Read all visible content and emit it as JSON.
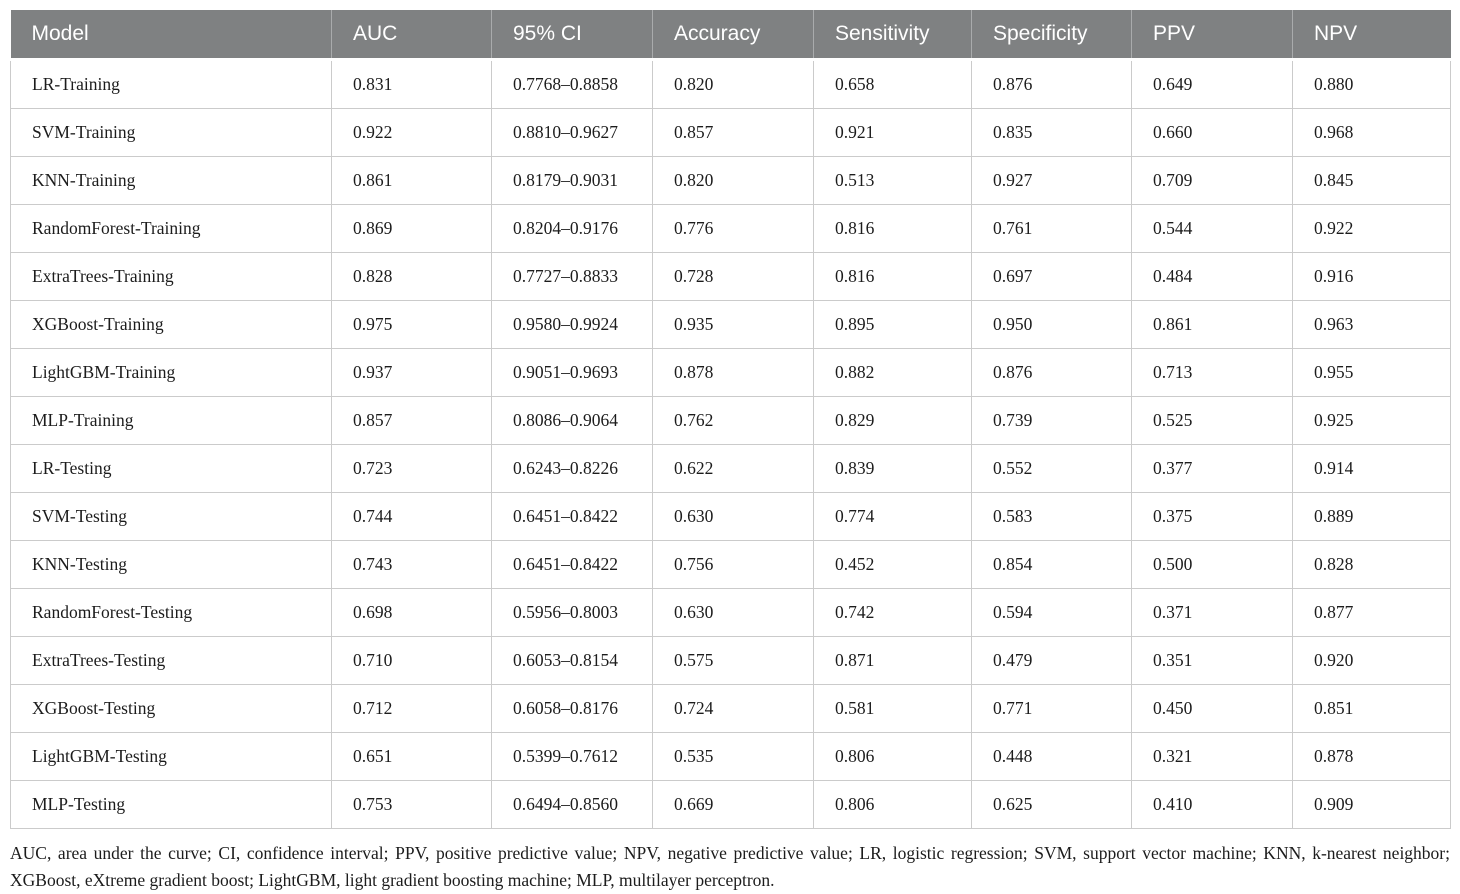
{
  "colors": {
    "header_bg": "#7f8182",
    "header_text": "#ffffff",
    "body_text": "#1c1c1c",
    "grid_border": "#cbcbcb"
  },
  "table": {
    "columns": [
      "Model",
      "AUC",
      "95% CI",
      "Accuracy",
      "Sensitivity",
      "Specificity",
      "PPV",
      "NPV"
    ],
    "rows": [
      [
        "LR-Training",
        "0.831",
        "0.7768–0.8858",
        "0.820",
        "0.658",
        "0.876",
        "0.649",
        "0.880"
      ],
      [
        "SVM-Training",
        "0.922",
        "0.8810–0.9627",
        "0.857",
        "0.921",
        "0.835",
        "0.660",
        "0.968"
      ],
      [
        "KNN-Training",
        "0.861",
        "0.8179–0.9031",
        "0.820",
        "0.513",
        "0.927",
        "0.709",
        "0.845"
      ],
      [
        "RandomForest-Training",
        "0.869",
        "0.8204–0.9176",
        "0.776",
        "0.816",
        "0.761",
        "0.544",
        "0.922"
      ],
      [
        "ExtraTrees-Training",
        "0.828",
        "0.7727–0.8833",
        "0.728",
        "0.816",
        "0.697",
        "0.484",
        "0.916"
      ],
      [
        "XGBoost-Training",
        "0.975",
        "0.9580–0.9924",
        "0.935",
        "0.895",
        "0.950",
        "0.861",
        "0.963"
      ],
      [
        "LightGBM-Training",
        "0.937",
        "0.9051–0.9693",
        "0.878",
        "0.882",
        "0.876",
        "0.713",
        "0.955"
      ],
      [
        "MLP-Training",
        "0.857",
        "0.8086–0.9064",
        "0.762",
        "0.829",
        "0.739",
        "0.525",
        "0.925"
      ],
      [
        "LR-Testing",
        "0.723",
        "0.6243–0.8226",
        "0.622",
        "0.839",
        "0.552",
        "0.377",
        "0.914"
      ],
      [
        "SVM-Testing",
        "0.744",
        "0.6451–0.8422",
        "0.630",
        "0.774",
        "0.583",
        "0.375",
        "0.889"
      ],
      [
        "KNN-Testing",
        "0.743",
        "0.6451–0.8422",
        "0.756",
        "0.452",
        "0.854",
        "0.500",
        "0.828"
      ],
      [
        "RandomForest-Testing",
        "0.698",
        "0.5956–0.8003",
        "0.630",
        "0.742",
        "0.594",
        "0.371",
        "0.877"
      ],
      [
        "ExtraTrees-Testing",
        "0.710",
        "0.6053–0.8154",
        "0.575",
        "0.871",
        "0.479",
        "0.351",
        "0.920"
      ],
      [
        "XGBoost-Testing",
        "0.712",
        "0.6058–0.8176",
        "0.724",
        "0.581",
        "0.771",
        "0.450",
        "0.851"
      ],
      [
        "LightGBM-Testing",
        "0.651",
        "0.5399–0.7612",
        "0.535",
        "0.806",
        "0.448",
        "0.321",
        "0.878"
      ],
      [
        "MLP-Testing",
        "0.753",
        "0.6494–0.8560",
        "0.669",
        "0.806",
        "0.625",
        "0.410",
        "0.909"
      ]
    ]
  },
  "footnote": "AUC, area under the curve; CI, confidence interval; PPV, positive predictive value; NPV, negative predictive value; LR, logistic regression; SVM, support vector machine; KNN, k-nearest neighbor; XGBoost, eXtreme gradient boost; LightGBM, light gradient boosting machine; MLP, multilayer perceptron."
}
